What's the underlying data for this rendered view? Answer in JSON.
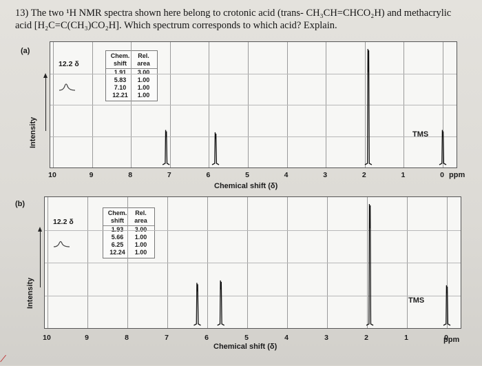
{
  "question": {
    "text": "13) The two ¹H NMR spectra shown here belong to crotonic acid (trans- CH₃CH=CHCO₂H) and methacrylic acid [H₂C=C(CH₃)CO₂H]. Which spectrum corresponds to which acid? Explain."
  },
  "chart_data": [
    {
      "type": "line",
      "panel": "(a)",
      "ylabel": "Intensity",
      "xlabel": "Chemical shift (δ)",
      "x_unit": "ppm",
      "x_ticks": [
        "10",
        "9",
        "8",
        "7",
        "6",
        "5",
        "4",
        "3",
        "2",
        "1",
        "0"
      ],
      "xlim": [
        10,
        0
      ],
      "inset_note": "12.2 δ",
      "tms_label": "TMS",
      "table": {
        "headers": [
          "Chem. shift",
          "Rel. area"
        ],
        "rows": [
          [
            "1.91",
            "3.00"
          ],
          [
            "5.83",
            "1.00"
          ],
          [
            "7.10",
            "1.00"
          ],
          [
            "12.21",
            "1.00"
          ]
        ]
      },
      "peaks": [
        {
          "shift": 7.1,
          "height": 0.3
        },
        {
          "shift": 5.83,
          "height": 0.28
        },
        {
          "shift": 1.91,
          "height": 1.0
        },
        {
          "shift": 0.0,
          "height": 0.3
        }
      ]
    },
    {
      "type": "line",
      "panel": "(b)",
      "ylabel": "Intensity",
      "xlabel": "Chemical shift (δ)",
      "x_unit": "ppm",
      "x_ticks": [
        "10",
        "9",
        "8",
        "7",
        "6",
        "5",
        "4",
        "3",
        "2",
        "1",
        "0"
      ],
      "xlim": [
        10,
        0
      ],
      "inset_note": "12.2 δ",
      "tms_label": "TMS",
      "table": {
        "headers": [
          "Chem. shift",
          "Rel. area"
        ],
        "rows": [
          [
            "1.93",
            "3.00"
          ],
          [
            "5.66",
            "1.00"
          ],
          [
            "6.25",
            "1.00"
          ],
          [
            "12.24",
            "1.00"
          ]
        ]
      },
      "peaks": [
        {
          "shift": 6.25,
          "height": 0.35
        },
        {
          "shift": 5.66,
          "height": 0.37
        },
        {
          "shift": 1.93,
          "height": 1.0
        },
        {
          "shift": 0.0,
          "height": 0.33
        }
      ]
    }
  ]
}
